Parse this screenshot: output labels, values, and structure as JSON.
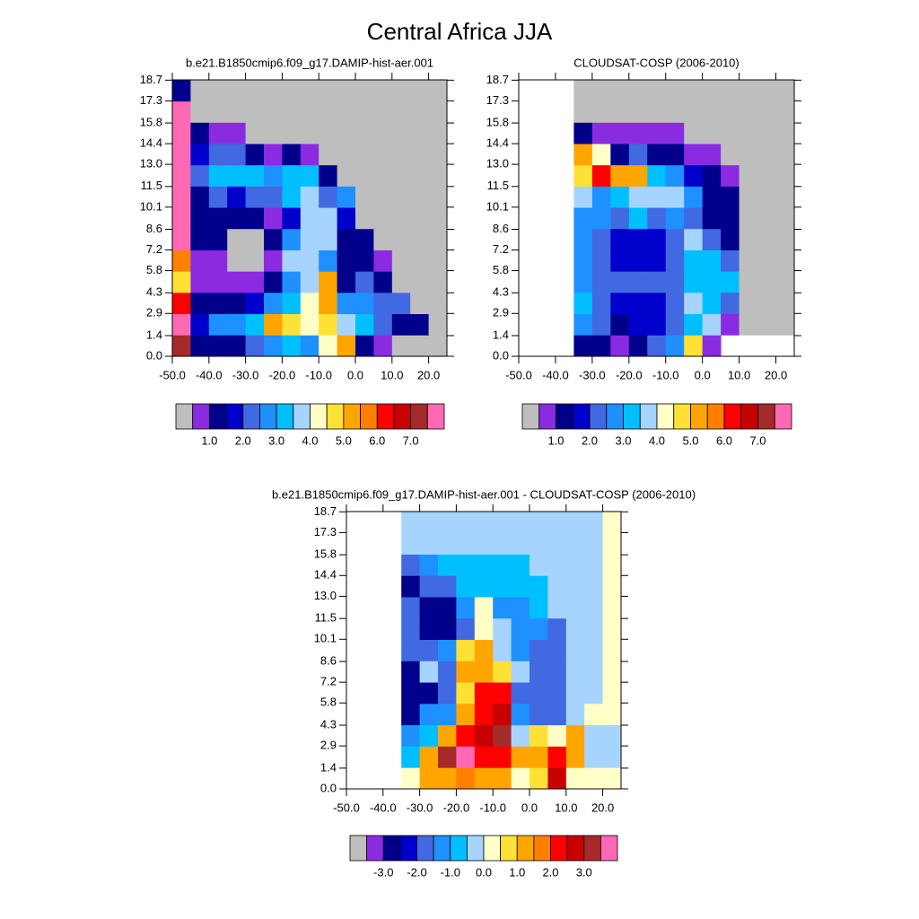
{
  "title": "Central Africa JJA",
  "chart_data": [
    {
      "type": "heatmap",
      "title": "b.e21.B1850cmip6.f09_g17.DAMIP-hist-aer.001",
      "x": [
        -47.5,
        -42.5,
        -37.5,
        -32.5,
        -27.5,
        -22.5,
        -17.5,
        -12.5,
        -7.5,
        -2.5,
        2.5,
        7.5,
        12.5,
        17.5,
        22.5
      ],
      "y": [
        0.72,
        2.16,
        3.6,
        5.04,
        6.48,
        7.92,
        9.36,
        10.8,
        12.24,
        13.68,
        15.12,
        16.56,
        18.0
      ],
      "values": [
        [
          7.25,
          1.25,
          1.25,
          1.25,
          2.25,
          2.75,
          3.25,
          2.75,
          4.25,
          5.25,
          1.25,
          0.75,
          0.25,
          0.25,
          0.25
        ],
        [
          7.75,
          1.75,
          2.75,
          2.75,
          3.25,
          5.25,
          4.75,
          4.25,
          4.75,
          3.75,
          3.25,
          2.25,
          1.25,
          1.25,
          0.25
        ],
        [
          6.25,
          1.25,
          1.25,
          1.25,
          1.75,
          2.75,
          3.25,
          4.25,
          5.25,
          2.75,
          2.75,
          2.25,
          2.25,
          0.25,
          0.25
        ],
        [
          4.75,
          0.75,
          0.75,
          0.75,
          0.75,
          1.25,
          2.75,
          3.75,
          5.25,
          1.25,
          2.25,
          1.25,
          0.25,
          0.25,
          0.25
        ],
        [
          5.75,
          0.75,
          0.75,
          0.25,
          0.25,
          0.75,
          3.75,
          3.75,
          2.75,
          1.25,
          1.25,
          0.75,
          0.25,
          0.25,
          0.25
        ],
        [
          7.75,
          1.25,
          1.25,
          0.25,
          0.25,
          1.25,
          2.75,
          3.75,
          3.75,
          1.25,
          1.25,
          0.25,
          0.25,
          0.25,
          0.25
        ],
        [
          7.75,
          1.25,
          1.25,
          1.25,
          1.25,
          0.75,
          1.75,
          3.75,
          3.75,
          1.75,
          0.25,
          0.25,
          0.25,
          0.25,
          0.25
        ],
        [
          7.75,
          1.25,
          2.25,
          1.75,
          2.25,
          2.25,
          3.25,
          3.75,
          2.25,
          2.75,
          0.25,
          0.25,
          0.25,
          0.25,
          0.25
        ],
        [
          7.75,
          2.25,
          3.25,
          3.25,
          3.25,
          2.75,
          3.25,
          3.25,
          1.25,
          0.25,
          0.25,
          0.25,
          0.25,
          0.25,
          0.25
        ],
        [
          7.75,
          1.75,
          2.25,
          2.25,
          1.25,
          0.75,
          1.25,
          0.75,
          0.25,
          0.25,
          0.25,
          0.25,
          0.25,
          0.25,
          0.25
        ],
        [
          7.75,
          1.25,
          0.75,
          0.75,
          0.25,
          0.25,
          0.25,
          0.25,
          0.25,
          0.25,
          0.25,
          0.25,
          0.25,
          0.25,
          0.25
        ],
        [
          7.75,
          0.25,
          0.25,
          0.25,
          0.25,
          0.25,
          0.25,
          0.25,
          0.25,
          0.25,
          0.25,
          0.25,
          0.25,
          0.25,
          0.25
        ],
        [
          1.25,
          0.25,
          0.25,
          0.25,
          0.25,
          0.25,
          0.25,
          0.25,
          0.25,
          0.25,
          0.25,
          0.25,
          0.25,
          0.25,
          0.25
        ]
      ],
      "xlim": [
        -50,
        25
      ],
      "ylim": [
        0,
        18.72
      ],
      "xticks": [
        {
          "value": -50,
          "label": "-50.0"
        },
        {
          "value": -40,
          "label": "-40.0"
        },
        {
          "value": -30,
          "label": "-30.0"
        },
        {
          "value": -20,
          "label": "-20.0"
        },
        {
          "value": -10,
          "label": "-10.0"
        },
        {
          "value": 0,
          "label": "0.0"
        },
        {
          "value": 10,
          "label": "10.0"
        },
        {
          "value": 20,
          "label": "20.0"
        }
      ],
      "yticks": [
        {
          "value": 0,
          "label": "0.0"
        },
        1.4,
        2.9,
        4.3,
        5.8,
        7.2,
        8.6,
        10.1,
        11.5,
        {
          "value": 13,
          "label": "13.0"
        },
        14.4,
        15.8,
        17.3,
        18.7
      ],
      "colorbar": {
        "colors": [
          "#bebebe",
          "#8a2be2",
          "#00008b",
          "#0000cd",
          "#4169e1",
          "#1e90ff",
          "#00bfff",
          "#a6d4ff",
          "#ffffc8",
          "#ffe135",
          "#ffa500",
          "#ff7f00",
          "#ff0000",
          "#c80000",
          "#a52a2a",
          "#ff69b4"
        ],
        "levels": [
          0.5,
          1.0,
          1.5,
          2.0,
          2.5,
          3.0,
          3.5,
          4.0,
          4.5,
          5.0,
          5.5,
          6.0,
          6.5,
          7.0,
          7.5
        ],
        "ticks": [
          {
            "value": 1,
            "label": "1.0"
          },
          {
            "value": 2,
            "label": "2.0"
          },
          {
            "value": 3,
            "label": "3.0"
          },
          {
            "value": 4,
            "label": "4.0"
          },
          {
            "value": 5,
            "label": "5.0"
          },
          {
            "value": 6,
            "label": "6.0"
          },
          {
            "value": 7,
            "label": "7.0"
          }
        ]
      }
    },
    {
      "type": "heatmap",
      "title": "CLOUDSAT-COSP (2006-2010)",
      "x": [
        -47.5,
        -42.5,
        -37.5,
        -32.5,
        -27.5,
        -22.5,
        -17.5,
        -12.5,
        -7.5,
        -2.5,
        2.5,
        7.5,
        12.5,
        17.5,
        22.5
      ],
      "y": [
        0.72,
        2.16,
        3.6,
        5.04,
        6.48,
        7.92,
        9.36,
        10.8,
        12.24,
        13.68,
        15.12,
        16.56,
        18.0
      ],
      "values": [
        [
          null,
          null,
          null,
          1.25,
          1.25,
          0.75,
          1.25,
          2.25,
          2.75,
          4.75,
          0.75,
          null,
          null,
          null,
          null
        ],
        [
          null,
          null,
          null,
          2.75,
          2.25,
          1.25,
          1.75,
          1.75,
          2.25,
          3.25,
          3.75,
          0.75,
          0.25,
          0.25,
          0.25
        ],
        [
          null,
          null,
          null,
          3.25,
          2.25,
          1.75,
          1.75,
          1.75,
          2.25,
          3.75,
          3.25,
          2.25,
          0.25,
          0.25,
          0.25
        ],
        [
          null,
          null,
          null,
          2.75,
          2.25,
          2.25,
          2.25,
          2.25,
          2.25,
          3.25,
          3.25,
          3.25,
          0.25,
          0.25,
          0.25
        ],
        [
          null,
          null,
          null,
          2.75,
          2.25,
          1.75,
          1.75,
          1.75,
          2.25,
          3.25,
          3.25,
          2.25,
          0.25,
          0.25,
          0.25
        ],
        [
          null,
          null,
          null,
          2.75,
          2.25,
          1.75,
          1.75,
          1.75,
          2.25,
          3.75,
          2.25,
          1.25,
          0.25,
          0.25,
          0.25
        ],
        [
          null,
          null,
          null,
          2.75,
          2.75,
          2.25,
          3.25,
          2.25,
          2.75,
          2.25,
          1.25,
          1.25,
          0.25,
          0.25,
          0.25
        ],
        [
          null,
          null,
          null,
          3.75,
          2.75,
          3.25,
          3.75,
          3.75,
          3.75,
          2.75,
          1.25,
          1.25,
          0.25,
          0.25,
          0.25
        ],
        [
          null,
          null,
          null,
          4.75,
          6.25,
          5.25,
          5.25,
          3.25,
          2.75,
          1.75,
          1.25,
          0.75,
          0.25,
          0.25,
          0.25
        ],
        [
          null,
          null,
          null,
          5.25,
          4.25,
          1.25,
          2.25,
          1.25,
          1.25,
          0.75,
          0.75,
          0.25,
          0.25,
          0.25,
          0.25
        ],
        [
          null,
          null,
          null,
          1.25,
          0.75,
          0.75,
          0.75,
          0.75,
          0.75,
          0.25,
          0.25,
          0.25,
          0.25,
          0.25,
          0.25
        ],
        [
          null,
          null,
          null,
          0.25,
          0.25,
          0.25,
          0.25,
          0.25,
          0.25,
          0.25,
          0.25,
          0.25,
          0.25,
          0.25,
          0.25
        ],
        [
          null,
          null,
          null,
          0.25,
          0.25,
          0.25,
          0.25,
          0.25,
          0.25,
          0.25,
          0.25,
          0.25,
          0.25,
          0.25,
          0.25
        ]
      ],
      "xlim": [
        -50,
        25
      ],
      "ylim": [
        0,
        18.72
      ],
      "xticks": [
        {
          "value": -50,
          "label": "-50.0"
        },
        {
          "value": -40,
          "label": "-40.0"
        },
        {
          "value": -30,
          "label": "-30.0"
        },
        {
          "value": -20,
          "label": "-20.0"
        },
        {
          "value": -10,
          "label": "-10.0"
        },
        {
          "value": 0,
          "label": "0.0"
        },
        {
          "value": 10,
          "label": "10.0"
        },
        {
          "value": 20,
          "label": "20.0"
        }
      ],
      "yticks": [
        {
          "value": 0,
          "label": "0.0"
        },
        1.4,
        2.9,
        4.3,
        5.8,
        7.2,
        8.6,
        10.1,
        11.5,
        {
          "value": 13,
          "label": "13.0"
        },
        14.4,
        15.8,
        17.3,
        18.7
      ],
      "colorbar": {
        "colors": [
          "#bebebe",
          "#8a2be2",
          "#00008b",
          "#0000cd",
          "#4169e1",
          "#1e90ff",
          "#00bfff",
          "#a6d4ff",
          "#ffffc8",
          "#ffe135",
          "#ffa500",
          "#ff7f00",
          "#ff0000",
          "#c80000",
          "#a52a2a",
          "#ff69b4"
        ],
        "levels": [
          0.5,
          1.0,
          1.5,
          2.0,
          2.5,
          3.0,
          3.5,
          4.0,
          4.5,
          5.0,
          5.5,
          6.0,
          6.5,
          7.0,
          7.5
        ],
        "ticks": [
          {
            "value": 1,
            "label": "1.0"
          },
          {
            "value": 2,
            "label": "2.0"
          },
          {
            "value": 3,
            "label": "3.0"
          },
          {
            "value": 4,
            "label": "4.0"
          },
          {
            "value": 5,
            "label": "5.0"
          },
          {
            "value": 6,
            "label": "6.0"
          },
          {
            "value": 7,
            "label": "7.0"
          }
        ]
      }
    },
    {
      "type": "heatmap",
      "title": "b.e21.B1850cmip6.f09_g17.DAMIP-hist-aer.001 - CLOUDSAT-COSP (2006-2010)",
      "x": [
        -47.5,
        -42.5,
        -37.5,
        -32.5,
        -27.5,
        -22.5,
        -17.5,
        -12.5,
        -7.5,
        -2.5,
        2.5,
        7.5,
        12.5,
        17.5,
        22.5
      ],
      "y": [
        0.72,
        2.16,
        3.6,
        5.04,
        6.48,
        7.92,
        9.36,
        10.8,
        12.24,
        13.68,
        15.12,
        16.56,
        18.0
      ],
      "values": [
        [
          null,
          null,
          null,
          0.25,
          1.25,
          1.25,
          1.75,
          1.25,
          1.25,
          0.25,
          0.75,
          2.75,
          0.25,
          0.25,
          0.25
        ],
        [
          null,
          null,
          null,
          -0.75,
          1.25,
          3.25,
          3.75,
          2.25,
          2.25,
          1.25,
          1.25,
          2.25,
          1.25,
          -0.25,
          -0.25
        ],
        [
          null,
          null,
          null,
          -1.25,
          -0.75,
          1.25,
          2.25,
          2.75,
          3.25,
          -0.25,
          0.75,
          0.25,
          1.25,
          -0.25,
          -0.25
        ],
        [
          null,
          null,
          null,
          -2.75,
          -1.25,
          -1.25,
          1.25,
          2.25,
          2.75,
          -1.25,
          -1.75,
          -1.75,
          -0.25,
          0.25,
          0.25
        ],
        [
          null,
          null,
          null,
          -2.75,
          -2.75,
          -1.75,
          0.75,
          2.25,
          2.25,
          -1.75,
          -1.75,
          -1.75,
          -0.25,
          -0.25,
          0.25
        ],
        [
          null,
          null,
          null,
          -2.75,
          -0.25,
          -1.75,
          1.25,
          1.25,
          0.75,
          -0.25,
          -1.75,
          -1.75,
          -0.25,
          -0.25,
          0.25
        ],
        [
          null,
          null,
          null,
          -1.75,
          -1.75,
          -1.25,
          0.75,
          1.25,
          -0.25,
          -1.25,
          -1.75,
          -1.75,
          -0.25,
          -0.25,
          0.25
        ],
        [
          null,
          null,
          null,
          -1.75,
          -2.75,
          -2.75,
          -1.75,
          0.25,
          -0.25,
          -1.25,
          -1.25,
          -1.75,
          -0.25,
          -0.25,
          0.25
        ],
        [
          null,
          null,
          null,
          -1.75,
          -2.75,
          -2.75,
          -1.25,
          0.25,
          -1.25,
          -1.25,
          -0.75,
          -0.25,
          -0.25,
          -0.25,
          0.25
        ],
        [
          null,
          null,
          null,
          -2.75,
          -1.75,
          -1.75,
          -0.75,
          -0.75,
          -0.75,
          -0.75,
          -0.75,
          -0.25,
          -0.25,
          -0.25,
          0.25
        ],
        [
          null,
          null,
          null,
          -1.75,
          -1.25,
          -0.75,
          -0.75,
          -0.75,
          -0.75,
          -0.75,
          -0.25,
          -0.25,
          -0.25,
          -0.25,
          0.25
        ],
        [
          null,
          null,
          null,
          -0.25,
          -0.25,
          -0.25,
          -0.25,
          -0.25,
          -0.25,
          -0.25,
          -0.25,
          -0.25,
          -0.25,
          -0.25,
          0.25
        ],
        [
          null,
          null,
          null,
          -0.25,
          -0.25,
          -0.25,
          -0.25,
          -0.25,
          -0.25,
          -0.25,
          -0.25,
          -0.25,
          -0.25,
          -0.25,
          0.25
        ]
      ],
      "xlim": [
        -50,
        25
      ],
      "ylim": [
        0,
        18.72
      ],
      "xticks": [
        {
          "value": -50,
          "label": "-50.0"
        },
        {
          "value": -40,
          "label": "-40.0"
        },
        {
          "value": -30,
          "label": "-30.0"
        },
        {
          "value": -20,
          "label": "-20.0"
        },
        {
          "value": -10,
          "label": "-10.0"
        },
        {
          "value": 0,
          "label": "0.0"
        },
        {
          "value": 10,
          "label": "10.0"
        },
        {
          "value": 20,
          "label": "20.0"
        }
      ],
      "yticks": [
        {
          "value": 0,
          "label": "0.0"
        },
        1.4,
        2.9,
        4.3,
        5.8,
        7.2,
        8.6,
        10.1,
        11.5,
        {
          "value": 13,
          "label": "13.0"
        },
        14.4,
        15.8,
        17.3,
        18.7
      ],
      "colorbar": {
        "colors": [
          "#bebebe",
          "#8a2be2",
          "#00008b",
          "#0000cd",
          "#4169e1",
          "#1e90ff",
          "#00bfff",
          "#a6d4ff",
          "#ffffc8",
          "#ffe135",
          "#ffa500",
          "#ff7f00",
          "#ff0000",
          "#c80000",
          "#a52a2a",
          "#ff69b4"
        ],
        "levels": [
          -3.5,
          -3.0,
          -2.5,
          -2.0,
          -1.5,
          -1.0,
          -0.5,
          0.0,
          0.5,
          1.0,
          1.5,
          2.0,
          2.5,
          3.0,
          3.5
        ],
        "ticks": [
          {
            "value": -3,
            "label": "-3.0"
          },
          {
            "value": -2,
            "label": "-2.0"
          },
          {
            "value": -1,
            "label": "-1.0"
          },
          {
            "value": 0,
            "label": "0.0"
          },
          {
            "value": 1,
            "label": "1.0"
          },
          {
            "value": 2,
            "label": "2.0"
          },
          {
            "value": 3,
            "label": "3.0"
          }
        ]
      }
    }
  ]
}
